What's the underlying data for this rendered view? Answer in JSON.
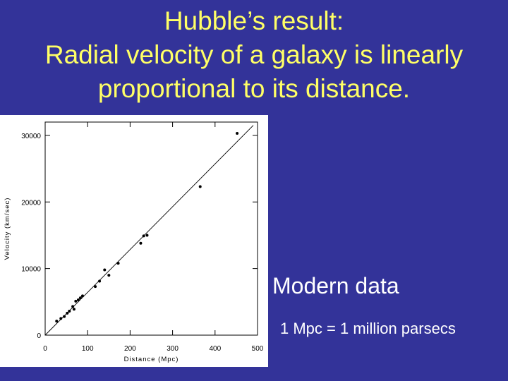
{
  "slide": {
    "title_lines": [
      "Hubble’s result:",
      "Radial velocity of a galaxy is linearly",
      "proportional to its distance."
    ],
    "modern_label": "Modern data",
    "mpc_note": "1 Mpc = 1 million parsecs"
  },
  "colors": {
    "background": "#333399",
    "title": "#ffff66",
    "text": "#ffffff",
    "plot_bg": "#ffffff",
    "ink": "#000000"
  },
  "chart_data": {
    "type": "scatter",
    "title": "",
    "xlabel": "Distance (Mpc)",
    "ylabel": "Velocity (km/sec)",
    "xlim": [
      0,
      500
    ],
    "ylim": [
      0,
      32000
    ],
    "xticks": [
      0,
      100,
      200,
      300,
      400,
      500
    ],
    "yticks": [
      0,
      10000,
      20000,
      30000
    ],
    "grid": false,
    "fit_line": {
      "x": [
        0,
        490
      ],
      "y": [
        0,
        31500
      ]
    },
    "points": [
      {
        "x": 27,
        "y": 2100
      },
      {
        "x": 37,
        "y": 2500
      },
      {
        "x": 45,
        "y": 2800
      },
      {
        "x": 52,
        "y": 3300
      },
      {
        "x": 57,
        "y": 3600
      },
      {
        "x": 65,
        "y": 4300
      },
      {
        "x": 68,
        "y": 3900
      },
      {
        "x": 72,
        "y": 5100
      },
      {
        "x": 78,
        "y": 5300
      },
      {
        "x": 83,
        "y": 5600
      },
      {
        "x": 88,
        "y": 5900
      },
      {
        "x": 118,
        "y": 7300
      },
      {
        "x": 128,
        "y": 8100
      },
      {
        "x": 140,
        "y": 9800
      },
      {
        "x": 150,
        "y": 9000
      },
      {
        "x": 172,
        "y": 10800
      },
      {
        "x": 225,
        "y": 13800
      },
      {
        "x": 232,
        "y": 14900
      },
      {
        "x": 240,
        "y": 15000
      },
      {
        "x": 365,
        "y": 22300
      },
      {
        "x": 452,
        "y": 30300
      }
    ]
  }
}
